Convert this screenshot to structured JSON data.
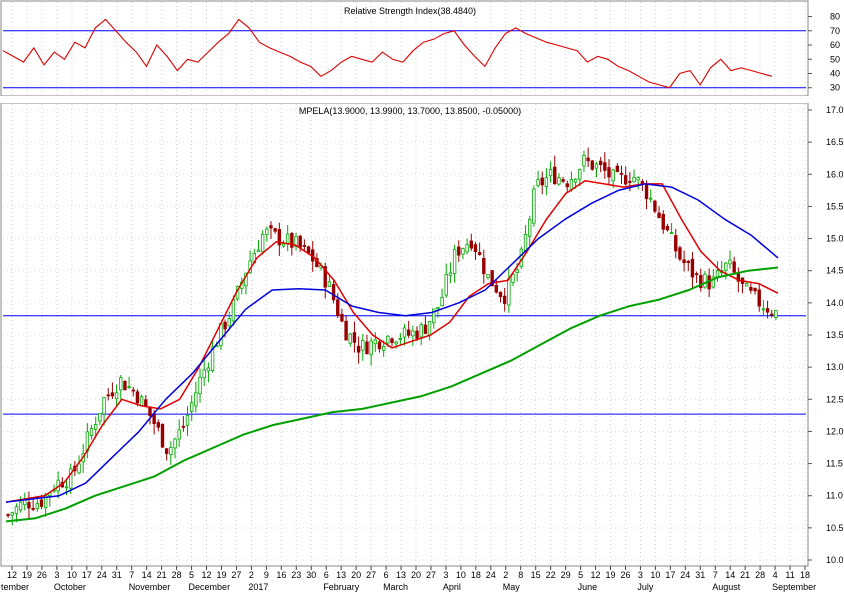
{
  "rsi_panel": {
    "title": "Relative Strength Index(38.4840)",
    "y_ticks": [
      "80",
      "70",
      "60",
      "50",
      "40",
      "30"
    ],
    "ylim": [
      27,
      86
    ],
    "levels": [
      70,
      30
    ]
  },
  "price_panel": {
    "title": "MPELA(13.9000, 13.9900, 13.7000, 13.8500, -0.05000)",
    "y_ticks": [
      "17.0",
      "16.5",
      "16.0",
      "15.5",
      "15.0",
      "14.5",
      "14.0",
      "13.5",
      "13.0",
      "12.5",
      "12.0",
      "11.5",
      "11.0",
      "10.5",
      "10.0"
    ],
    "ylim": [
      10.0,
      17.0
    ],
    "horizontal_lines": [
      13.8,
      12.27
    ]
  },
  "x_axis": {
    "day_ticks": [
      "12",
      "19",
      "26",
      "3",
      "10",
      "17",
      "24",
      "31",
      "7",
      "14",
      "21",
      "28",
      "5",
      "12",
      "19",
      "27",
      "2",
      "9",
      "16",
      "23",
      "30",
      "6",
      "13",
      "20",
      "27",
      "6",
      "13",
      "20",
      "27",
      "3",
      "10",
      "18",
      "24",
      "2",
      "8",
      "15",
      "22",
      "29",
      "5",
      "12",
      "19",
      "26",
      "3",
      "10",
      "17",
      "24",
      "31",
      "7",
      "14",
      "21",
      "28",
      "4",
      "11",
      "18"
    ],
    "month_labels": [
      {
        "label": "tember",
        "at": 0
      },
      {
        "label": "October",
        "at": 3
      },
      {
        "label": "November",
        "at": 8
      },
      {
        "label": "December",
        "at": 12
      },
      {
        "label": "2017",
        "at": 16
      },
      {
        "label": "February",
        "at": 21
      },
      {
        "label": "March",
        "at": 25
      },
      {
        "label": "April",
        "at": 29
      },
      {
        "label": "May",
        "at": 33
      },
      {
        "label": "June",
        "at": 38
      },
      {
        "label": "July",
        "at": 42
      },
      {
        "label": "August",
        "at": 47
      },
      {
        "label": "September",
        "at": 51
      }
    ]
  },
  "chart_data": [
    {
      "type": "line",
      "title": "Relative Strength Index(38.4840)",
      "ylim": [
        27,
        86
      ],
      "series": [
        {
          "values": [
            56,
            52,
            48,
            58,
            46,
            55,
            50,
            62,
            58,
            72,
            78,
            70,
            62,
            55,
            45,
            60,
            52,
            42,
            50,
            48,
            55,
            62,
            68,
            78,
            72,
            62,
            58,
            55,
            52,
            48,
            45,
            38,
            42,
            48,
            52,
            50,
            48,
            55,
            50,
            48,
            56,
            62,
            64,
            68,
            70,
            60,
            52,
            45,
            58,
            68,
            72,
            68,
            65,
            62,
            60,
            58,
            56,
            48,
            52,
            50,
            45,
            42,
            38,
            34,
            32,
            30,
            40,
            42,
            32,
            44,
            50,
            42,
            44,
            42,
            40,
            38
          ]
        }
      ],
      "colors": {
        "line": "#e00000",
        "levels": "#0000ff"
      }
    },
    {
      "type": "line",
      "title": "MPELA(13.9000, 13.9900, 13.7000, 13.8500, -0.05000)",
      "ylim": [
        10.0,
        17.0
      ],
      "series": [
        {
          "values": [
            10.7,
            10.9,
            10.9,
            11.2,
            11.3,
            11.9,
            12.5,
            12.8,
            12.6,
            12.2,
            11.7,
            12.1,
            12.8,
            13.4,
            13.9,
            14.6,
            15.1,
            15.0,
            14.9,
            14.7,
            14.3,
            13.6,
            13.3,
            13.4,
            13.5,
            13.5,
            13.6,
            14.0,
            14.8,
            15.0,
            14.4,
            14.1,
            14.6,
            15.8,
            16.0,
            15.9,
            16.2,
            16.1,
            15.9,
            16.0,
            15.7,
            15.2,
            14.7,
            14.4,
            14.3,
            14.6,
            14.2,
            14.0,
            13.85
          ]
        },
        {
          "values": [
            10.9,
            10.95,
            11.0,
            11.2,
            11.6,
            12.1,
            12.5,
            12.4,
            12.35,
            12.5,
            13.0,
            13.6,
            14.2,
            14.7,
            14.95,
            14.9,
            14.7,
            14.35,
            13.85,
            13.5,
            13.3,
            13.4,
            13.5,
            13.7,
            14.1,
            14.3,
            14.35,
            14.8,
            15.3,
            15.7,
            15.9,
            15.85,
            15.8,
            15.85,
            15.85,
            15.3,
            14.8,
            14.5,
            14.35,
            14.3,
            14.15
          ]
        },
        {
          "values": [
            10.9,
            10.95,
            11.0,
            11.2,
            11.6,
            12.0,
            12.5,
            12.9,
            13.4,
            13.9,
            14.2,
            14.22,
            14.2,
            13.95,
            13.85,
            13.8,
            13.85,
            14.0,
            14.2,
            14.6,
            15.0,
            15.3,
            15.55,
            15.75,
            15.85,
            15.8,
            15.6,
            15.3,
            15.05,
            14.7
          ]
        },
        {
          "values": [
            10.6,
            10.65,
            10.8,
            11.0,
            11.15,
            11.3,
            11.55,
            11.75,
            11.95,
            12.1,
            12.2,
            12.3,
            12.35,
            12.45,
            12.55,
            12.7,
            12.9,
            13.1,
            13.35,
            13.6,
            13.8,
            13.95,
            14.05,
            14.2,
            14.4,
            14.5,
            14.55
          ]
        }
      ],
      "colors": {
        "price": "#000000",
        "up_candle": "#00aa00",
        "down_candle": "#990000",
        "ma_short": "#e00000",
        "ma_mid": "#0000dd",
        "ma_long": "#00a000",
        "levels": "#0000ff"
      }
    }
  ]
}
